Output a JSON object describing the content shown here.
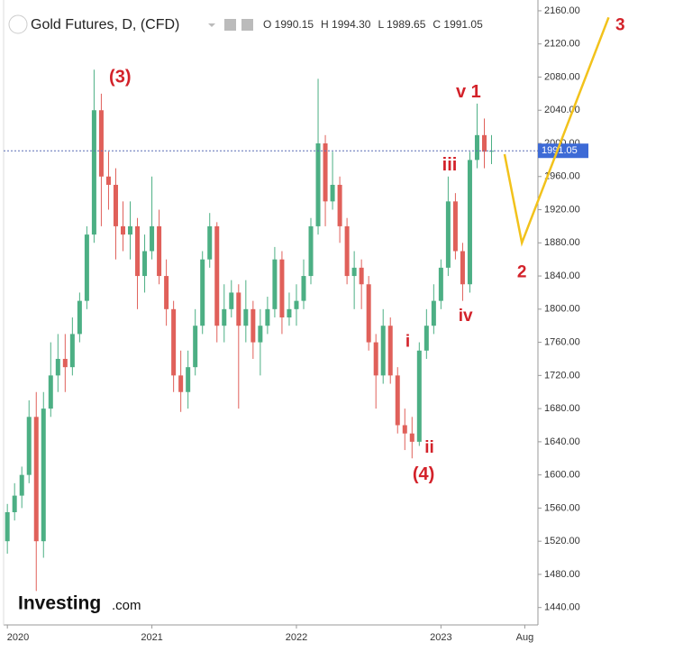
{
  "chart_data": {
    "type": "candlestick",
    "title": "Gold Futures, D, (CFD)",
    "ohlc_labels": [
      "O 1990.15",
      "H 1994.30",
      "L 1989.65",
      "C 1991.05"
    ],
    "last_price": 1991.05,
    "last_price_label": "1991.05",
    "up_color": "#4caf84",
    "down_color": "#e0605a",
    "x": [
      2020.0,
      2020.05,
      2020.1,
      2020.15,
      2020.2,
      2020.25,
      2020.3,
      2020.35,
      2020.4,
      2020.45,
      2020.5,
      2020.55,
      2020.6,
      2020.65,
      2020.7,
      2020.75,
      2020.8,
      2020.85,
      2020.9,
      2020.95,
      2021.0,
      2021.05,
      2021.1,
      2021.15,
      2021.2,
      2021.25,
      2021.3,
      2021.35,
      2021.4,
      2021.45,
      2021.5,
      2021.55,
      2021.6,
      2021.65,
      2021.7,
      2021.75,
      2021.8,
      2021.85,
      2021.9,
      2021.95,
      2022.0,
      2022.05,
      2022.1,
      2022.15,
      2022.2,
      2022.25,
      2022.3,
      2022.35,
      2022.4,
      2022.45,
      2022.5,
      2022.55,
      2022.6,
      2022.65,
      2022.7,
      2022.75,
      2022.8,
      2022.85,
      2022.9,
      2022.95,
      2023.0,
      2023.05,
      2023.1,
      2023.15,
      2023.2,
      2023.25,
      2023.3,
      2023.35
    ],
    "open": [
      1520,
      1555,
      1575,
      1600,
      1670,
      1520,
      1680,
      1720,
      1740,
      1730,
      1770,
      1810,
      1890,
      2040,
      1960,
      1950,
      1900,
      1890,
      1900,
      1840,
      1870,
      1900,
      1840,
      1800,
      1720,
      1700,
      1730,
      1780,
      1860,
      1900,
      1780,
      1800,
      1820,
      1780,
      1800,
      1760,
      1780,
      1800,
      1860,
      1790,
      1800,
      1810,
      1840,
      1900,
      2000,
      1930,
      1950,
      1900,
      1840,
      1850,
      1830,
      1760,
      1720,
      1780,
      1720,
      1660,
      1650,
      1640,
      1750,
      1780,
      1810,
      1850,
      1930,
      1870,
      1830,
      1980,
      2010,
      1990
    ],
    "high": [
      1565,
      1590,
      1610,
      1690,
      1700,
      1700,
      1760,
      1770,
      1770,
      1790,
      1820,
      1900,
      2089,
      2060,
      1990,
      1970,
      1930,
      1930,
      1910,
      1890,
      1960,
      1920,
      1860,
      1810,
      1750,
      1750,
      1800,
      1870,
      1916,
      1905,
      1830,
      1835,
      1830,
      1835,
      1810,
      1800,
      1815,
      1875,
      1870,
      1820,
      1830,
      1860,
      1910,
      2078,
      2010,
      1990,
      1960,
      1910,
      1870,
      1860,
      1840,
      1770,
      1800,
      1790,
      1730,
      1680,
      1670,
      1760,
      1800,
      1830,
      1860,
      1960,
      1940,
      1880,
      1990,
      2048,
      2030,
      2010
    ],
    "low": [
      1505,
      1545,
      1560,
      1590,
      1460,
      1500,
      1670,
      1700,
      1700,
      1720,
      1760,
      1800,
      1880,
      1900,
      1920,
      1860,
      1870,
      1860,
      1800,
      1820,
      1860,
      1830,
      1780,
      1700,
      1676,
      1680,
      1720,
      1770,
      1850,
      1760,
      1760,
      1790,
      1680,
      1760,
      1740,
      1720,
      1770,
      1790,
      1770,
      1780,
      1780,
      1800,
      1830,
      1890,
      1900,
      1920,
      1880,
      1830,
      1800,
      1800,
      1750,
      1680,
      1710,
      1710,
      1650,
      1630,
      1620,
      1635,
      1740,
      1770,
      1800,
      1840,
      1860,
      1810,
      1820,
      1970,
      1970,
      1975
    ],
    "close": [
      1555,
      1575,
      1600,
      1670,
      1520,
      1680,
      1720,
      1740,
      1730,
      1770,
      1810,
      1890,
      2040,
      1960,
      1950,
      1900,
      1890,
      1900,
      1840,
      1870,
      1900,
      1840,
      1800,
      1720,
      1700,
      1730,
      1780,
      1860,
      1900,
      1780,
      1800,
      1820,
      1780,
      1800,
      1760,
      1780,
      1800,
      1860,
      1790,
      1800,
      1810,
      1840,
      1900,
      2000,
      1930,
      1950,
      1900,
      1840,
      1850,
      1830,
      1760,
      1720,
      1780,
      1720,
      1660,
      1650,
      1640,
      1750,
      1780,
      1810,
      1850,
      1930,
      1870,
      1830,
      1980,
      2010,
      1990,
      1991.05
    ],
    "xlim": [
      2019.974,
      2023.671
    ],
    "ylim": [
      1419,
      2173
    ],
    "xticks": [
      {
        "value": 2020,
        "label": "2020"
      },
      {
        "value": 2021,
        "label": "2021"
      },
      {
        "value": 2022,
        "label": "2022"
      },
      {
        "value": 2023,
        "label": "2023"
      },
      {
        "value": 2023.58,
        "label": "Aug"
      }
    ],
    "yticks": [
      {
        "value": 1440,
        "label": "1440.00"
      },
      {
        "value": 1480,
        "label": "1480.00"
      },
      {
        "value": 1520,
        "label": "1520.00"
      },
      {
        "value": 1560,
        "label": "1560.00"
      },
      {
        "value": 1600,
        "label": "1600.00"
      },
      {
        "value": 1640,
        "label": "1640.00"
      },
      {
        "value": 1680,
        "label": "1680.00"
      },
      {
        "value": 1720,
        "label": "1720.00"
      },
      {
        "value": 1760,
        "label": "1760.00"
      },
      {
        "value": 1800,
        "label": "1800.00"
      },
      {
        "value": 1840,
        "label": "1840.00"
      },
      {
        "value": 1880,
        "label": "1880.00"
      },
      {
        "value": 1920,
        "label": "1920.00"
      },
      {
        "value": 1960,
        "label": "1960.00"
      },
      {
        "value": 2000,
        "label": "2000.00"
      },
      {
        "value": 2040,
        "label": "2040.00"
      },
      {
        "value": 2080,
        "label": "2080.00"
      },
      {
        "value": 2120,
        "label": "2120.00"
      },
      {
        "value": 2160,
        "label": "2160.00"
      }
    ],
    "annotations": [
      {
        "text": "(3)",
        "x": 2020.78,
        "y": 2079
      },
      {
        "text": "(4)",
        "x": 2022.88,
        "y": 1600
      },
      {
        "text": "i",
        "x": 2022.77,
        "y": 1760
      },
      {
        "text": "ii",
        "x": 2022.92,
        "y": 1632
      },
      {
        "text": "iii",
        "x": 2023.06,
        "y": 1973
      },
      {
        "text": "iv",
        "x": 2023.17,
        "y": 1791
      },
      {
        "text": "v 1",
        "x": 2023.19,
        "y": 2061
      },
      {
        "text": "2",
        "x": 2023.56,
        "y": 1844
      },
      {
        "text": "3",
        "x": 2024.24,
        "y": 2142
      }
    ],
    "annotation_color": "#d3222a",
    "projection": {
      "color": "#f2c21b",
      "x": [
        2023.44,
        2023.56,
        2024.16
      ],
      "y": [
        1987,
        1880,
        2152
      ]
    },
    "logo": {
      "brand": "Investing",
      "suffix": ".com"
    }
  }
}
